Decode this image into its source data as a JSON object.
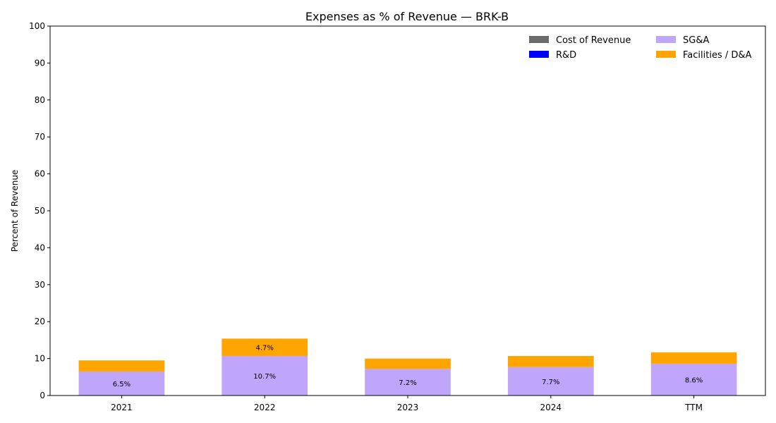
{
  "chart_data": {
    "type": "bar",
    "stacked": true,
    "title": "Expenses as % of Revenue — BRK-B",
    "xlabel": "",
    "ylabel": "Percent of Revenue",
    "ylim": [
      0,
      100
    ],
    "yticks": [
      0,
      10,
      20,
      30,
      40,
      50,
      60,
      70,
      80,
      90,
      100
    ],
    "categories": [
      "2021",
      "2022",
      "2023",
      "2024",
      "TTM"
    ],
    "series": [
      {
        "name": "Cost of Revenue",
        "color": "#6b6b6b",
        "values": [
          0,
          0,
          0,
          0,
          0
        ],
        "labels": [
          "",
          "",
          "",
          "",
          ""
        ]
      },
      {
        "name": "R&D",
        "color": "#0000ff",
        "values": [
          0,
          0,
          0,
          0,
          0
        ],
        "labels": [
          "",
          "",
          "",
          "",
          ""
        ]
      },
      {
        "name": "SG&A",
        "color": "#c0a6fb",
        "values": [
          6.5,
          10.7,
          7.2,
          7.7,
          8.6
        ],
        "labels": [
          "6.5%",
          "10.7%",
          "7.2%",
          "7.7%",
          "8.6%"
        ]
      },
      {
        "name": "Facilities / D&A",
        "color": "#ffa500",
        "values": [
          3.0,
          4.7,
          2.8,
          3.0,
          3.1
        ],
        "labels": [
          "",
          "4.7%",
          "",
          "",
          ""
        ]
      }
    ],
    "legend": "top-right",
    "grid": false
  }
}
